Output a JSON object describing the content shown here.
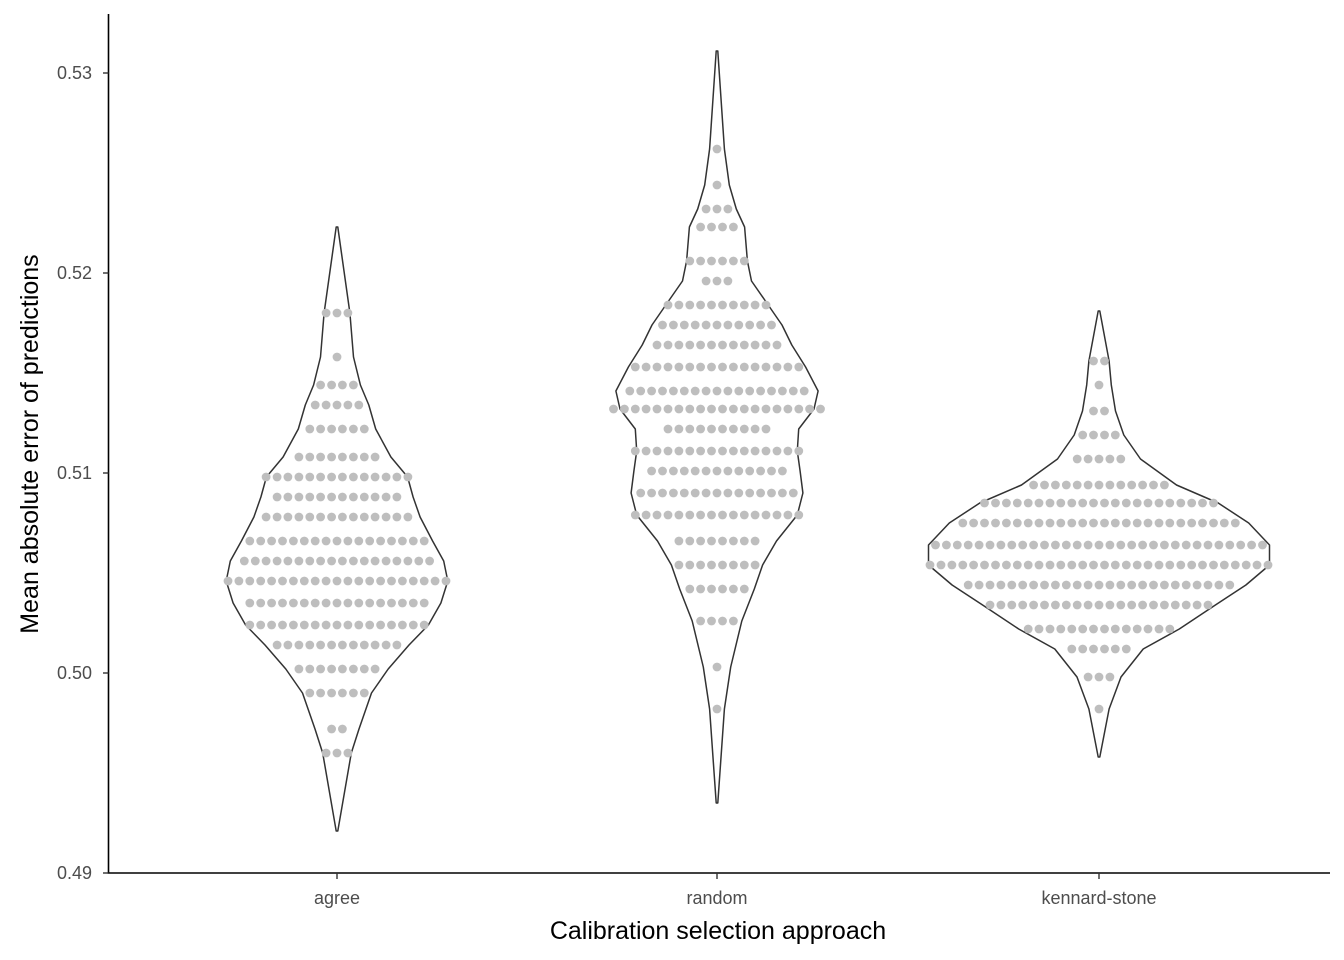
{
  "chart_data": {
    "type": "violin",
    "xlabel": "Calibration selection approach",
    "ylabel": "Mean absolute error of predictions",
    "ylim": [
      0.49,
      0.533
    ],
    "y_ticks": [
      "0.49",
      "0.50",
      "0.51",
      "0.52",
      "0.53"
    ],
    "grid": false,
    "colors": {
      "dot": "#bebebe",
      "violin_outline": "#333333",
      "axis": "#000000"
    },
    "categories": [
      "agree",
      "random",
      "kennard-stone"
    ],
    "series": [
      {
        "category": "agree",
        "range": [
          0.4921,
          0.5223
        ],
        "dot_rows": [
          {
            "y": 0.518,
            "count": 3
          },
          {
            "y": 0.5158,
            "count": 1
          },
          {
            "y": 0.5144,
            "count": 4
          },
          {
            "y": 0.5134,
            "count": 5
          },
          {
            "y": 0.5122,
            "count": 6
          },
          {
            "y": 0.5108,
            "count": 8
          },
          {
            "y": 0.5098,
            "count": 14
          },
          {
            "y": 0.5088,
            "count": 12
          },
          {
            "y": 0.5078,
            "count": 14
          },
          {
            "y": 0.5066,
            "count": 17
          },
          {
            "y": 0.5056,
            "count": 18
          },
          {
            "y": 0.5046,
            "count": 21
          },
          {
            "y": 0.5035,
            "count": 17
          },
          {
            "y": 0.5024,
            "count": 17
          },
          {
            "y": 0.5014,
            "count": 12
          },
          {
            "y": 0.5002,
            "count": 8
          },
          {
            "y": 0.499,
            "count": 6
          },
          {
            "y": 0.4972,
            "count": 2
          },
          {
            "y": 0.496,
            "count": 3
          }
        ]
      },
      {
        "category": "random",
        "range": [
          0.4935,
          0.5311
        ],
        "dot_rows": [
          {
            "y": 0.5262,
            "count": 1
          },
          {
            "y": 0.5244,
            "count": 1
          },
          {
            "y": 0.5232,
            "count": 3
          },
          {
            "y": 0.5223,
            "count": 4
          },
          {
            "y": 0.5206,
            "count": 6
          },
          {
            "y": 0.5196,
            "count": 3
          },
          {
            "y": 0.5184,
            "count": 10
          },
          {
            "y": 0.5174,
            "count": 11
          },
          {
            "y": 0.5164,
            "count": 12
          },
          {
            "y": 0.5153,
            "count": 16
          },
          {
            "y": 0.5141,
            "count": 17
          },
          {
            "y": 0.5132,
            "count": 20
          },
          {
            "y": 0.5122,
            "count": 10
          },
          {
            "y": 0.5111,
            "count": 16
          },
          {
            "y": 0.5101,
            "count": 13
          },
          {
            "y": 0.509,
            "count": 15
          },
          {
            "y": 0.5079,
            "count": 16
          },
          {
            "y": 0.5066,
            "count": 8
          },
          {
            "y": 0.5054,
            "count": 8
          },
          {
            "y": 0.5042,
            "count": 6
          },
          {
            "y": 0.5026,
            "count": 4
          },
          {
            "y": 0.5003,
            "count": 1
          },
          {
            "y": 0.4982,
            "count": 1
          }
        ]
      },
      {
        "category": "kennard-stone",
        "range": [
          0.4958,
          0.5181
        ],
        "dot_rows": [
          {
            "y": 0.5156,
            "count": 2
          },
          {
            "y": 0.5144,
            "count": 1
          },
          {
            "y": 0.5131,
            "count": 2
          },
          {
            "y": 0.5119,
            "count": 4
          },
          {
            "y": 0.5107,
            "count": 5
          },
          {
            "y": 0.5094,
            "count": 13
          },
          {
            "y": 0.5085,
            "count": 22
          },
          {
            "y": 0.5075,
            "count": 26
          },
          {
            "y": 0.5064,
            "count": 31
          },
          {
            "y": 0.5054,
            "count": 32
          },
          {
            "y": 0.5044,
            "count": 25
          },
          {
            "y": 0.5034,
            "count": 21
          },
          {
            "y": 0.5022,
            "count": 14
          },
          {
            "y": 0.5012,
            "count": 6
          },
          {
            "y": 0.4998,
            "count": 3
          },
          {
            "y": 0.4982,
            "count": 1
          }
        ]
      }
    ]
  }
}
